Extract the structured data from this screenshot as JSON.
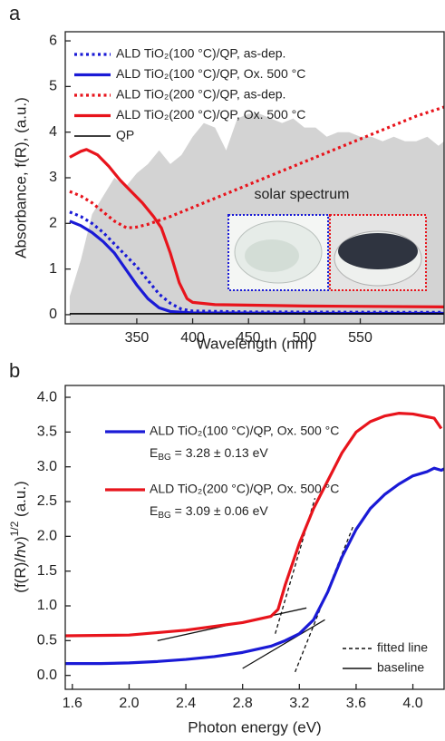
{
  "chart_data": [
    {
      "type": "line",
      "panel_label": "a",
      "x_label": "Wavelength (nm)",
      "y_label": "Absorbance, f(R), (a.u.)",
      "xlim": [
        286,
        625
      ],
      "ylim": [
        -0.2,
        6.2
      ],
      "xticks": [
        350,
        400,
        450,
        500,
        550
      ],
      "yticks": [
        0,
        1,
        2,
        3,
        4,
        5,
        6
      ],
      "series": [
        {
          "name": "solar spectrum",
          "kind": "area",
          "color": "#d3d3d3",
          "x": [
            290,
            300,
            310,
            320,
            330,
            340,
            350,
            360,
            370,
            380,
            390,
            400,
            410,
            420,
            430,
            440,
            450,
            460,
            470,
            480,
            490,
            500,
            510,
            520,
            530,
            540,
            550,
            560,
            570,
            580,
            590,
            600,
            610,
            620,
            625
          ],
          "y": [
            0.4,
            1.2,
            2.2,
            2.6,
            3.0,
            2.8,
            3.1,
            3.3,
            3.6,
            3.3,
            3.5,
            3.9,
            4.2,
            4.1,
            3.6,
            4.3,
            4.4,
            4.4,
            4.3,
            4.2,
            4.3,
            4.1,
            4.1,
            3.9,
            4.0,
            4.0,
            3.9,
            3.9,
            3.8,
            3.9,
            3.8,
            3.8,
            3.9,
            3.7,
            3.8
          ]
        },
        {
          "name": "ALD TiO₂(100 °C)/QP, as-dep.",
          "style": "dotted",
          "color": "#1a1ad6",
          "x": [
            290,
            300,
            310,
            320,
            330,
            340,
            350,
            360,
            370,
            380,
            390,
            400,
            450,
            625
          ],
          "y": [
            2.25,
            2.15,
            2.0,
            1.8,
            1.55,
            1.3,
            1.05,
            0.75,
            0.45,
            0.25,
            0.12,
            0.08,
            0.06,
            0.05
          ]
        },
        {
          "name": "ALD TiO₂(100 °C)/QP, Ox. 500 °C",
          "style": "solid",
          "color": "#1a1ad6",
          "x": [
            290,
            300,
            310,
            320,
            330,
            340,
            350,
            360,
            370,
            380,
            400,
            500,
            625
          ],
          "y": [
            2.05,
            1.95,
            1.8,
            1.6,
            1.35,
            1.0,
            0.65,
            0.35,
            0.15,
            0.07,
            0.04,
            0.03,
            0.03
          ]
        },
        {
          "name": "ALD TiO₂(200 °C)/QP, as-dep.",
          "style": "dotted",
          "color": "#e8141c",
          "x": [
            290,
            300,
            310,
            320,
            330,
            341,
            350,
            360,
            380,
            400,
            450,
            500,
            550,
            600,
            625
          ],
          "y": [
            2.7,
            2.6,
            2.45,
            2.25,
            2.05,
            1.9,
            1.92,
            1.98,
            2.15,
            2.35,
            2.85,
            3.35,
            3.85,
            4.35,
            4.55
          ]
        },
        {
          "name": "ALD TiO₂(200 °C)/QP, Ox. 500 °C",
          "style": "solid",
          "color": "#e8141c",
          "x": [
            290,
            300,
            305,
            315,
            325,
            335,
            345,
            355,
            365,
            372,
            380,
            388,
            395,
            400,
            420,
            500,
            625
          ],
          "y": [
            3.45,
            3.58,
            3.62,
            3.5,
            3.25,
            2.95,
            2.7,
            2.45,
            2.15,
            1.9,
            1.35,
            0.7,
            0.35,
            0.27,
            0.22,
            0.19,
            0.17
          ]
        },
        {
          "name": "QP",
          "style": "thin",
          "color": "#000000",
          "x": [
            290,
            625
          ],
          "y": [
            0.02,
            0.02
          ]
        }
      ]
    },
    {
      "type": "line",
      "panel_label": "b",
      "x_label": "Photon energy (eV)",
      "y_label": [
        "(f(R)/",
        "h",
        "ν)",
        "1/2",
        " (a.u.)"
      ],
      "xlim": [
        1.55,
        4.22
      ],
      "ylim": [
        -0.2,
        4.17
      ],
      "xticks": [
        {
          "value": 1.6,
          "label": "1.6"
        },
        {
          "value": 2.0,
          "label": "2.0"
        },
        {
          "value": 2.4,
          "label": "2.4"
        },
        {
          "value": 2.8,
          "label": "2.8"
        },
        {
          "value": 3.2,
          "label": "3.2"
        },
        {
          "value": 3.6,
          "label": "3.6"
        },
        {
          "value": 4.0,
          "label": "4.0"
        }
      ],
      "yticks": [
        {
          "value": 0,
          "label": "0.0"
        },
        {
          "value": 0.5,
          "label": "0.5"
        },
        {
          "value": 1,
          "label": "1.0"
        },
        {
          "value": 1.5,
          "label": "1.5"
        },
        {
          "value": 2,
          "label": "2.0"
        },
        {
          "value": 2.5,
          "label": "2.5"
        },
        {
          "value": 3,
          "label": "3.0"
        },
        {
          "value": 3.5,
          "label": "3.5"
        },
        {
          "value": 4,
          "label": "4.0"
        }
      ],
      "series": [
        {
          "name": "ALD TiO₂(100 °C)/QP, Ox. 500 °C",
          "style": "solid",
          "color": "#1a1ad6",
          "band_gap": [
            "E",
            "BG",
            " = 3.28 ± 0.13 eV"
          ],
          "x": [
            1.55,
            1.8,
            2.0,
            2.2,
            2.4,
            2.6,
            2.8,
            3.0,
            3.1,
            3.2,
            3.3,
            3.4,
            3.5,
            3.6,
            3.7,
            3.8,
            3.9,
            4.0,
            4.1,
            4.15,
            4.2,
            4.22
          ],
          "y": [
            0.17,
            0.17,
            0.18,
            0.2,
            0.23,
            0.27,
            0.33,
            0.42,
            0.5,
            0.6,
            0.8,
            1.2,
            1.7,
            2.1,
            2.4,
            2.6,
            2.75,
            2.87,
            2.93,
            2.98,
            2.95,
            2.97
          ]
        },
        {
          "name": "ALD TiO₂(200 °C)/QP, Ox. 500 °C",
          "style": "solid",
          "color": "#e8141c",
          "band_gap": [
            "E",
            "BG",
            " = 3.09 ± 0.06 eV"
          ],
          "x": [
            1.55,
            2.0,
            2.4,
            2.8,
            3.0,
            3.05,
            3.1,
            3.2,
            3.3,
            3.4,
            3.5,
            3.6,
            3.7,
            3.8,
            3.9,
            4.0,
            4.1,
            4.15,
            4.2
          ],
          "y": [
            0.57,
            0.58,
            0.65,
            0.76,
            0.85,
            0.95,
            1.3,
            1.9,
            2.4,
            2.8,
            3.2,
            3.5,
            3.65,
            3.73,
            3.77,
            3.76,
            3.72,
            3.7,
            3.55
          ]
        }
      ],
      "fits": [
        {
          "name": "fitted line",
          "style": "dashed",
          "segments": [
            {
              "x": [
                3.03,
                3.31
              ],
              "y": [
                0.6,
                2.55
              ]
            },
            {
              "x": [
                3.17,
                3.58
              ],
              "y": [
                0.05,
                2.15
              ]
            }
          ]
        },
        {
          "name": "baseline",
          "style": "solid",
          "segments": [
            {
              "x": [
                2.2,
                3.25
              ],
              "y": [
                0.5,
                0.97
              ]
            },
            {
              "x": [
                2.8,
                3.38
              ],
              "y": [
                0.1,
                0.8
              ]
            }
          ]
        }
      ]
    }
  ]
}
